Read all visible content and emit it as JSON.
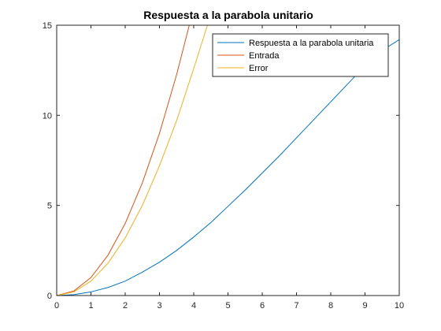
{
  "chart_data": {
    "type": "line",
    "title": "Respuesta a la parabola unitario",
    "xlabel": "",
    "ylabel": "",
    "xlim": [
      0,
      10
    ],
    "ylim": [
      0,
      15
    ],
    "xticks": [
      "0",
      "1",
      "2",
      "3",
      "4",
      "5",
      "6",
      "7",
      "8",
      "9",
      "10"
    ],
    "yticks": [
      "0",
      "5",
      "10",
      "15"
    ],
    "grid": false,
    "legend_position": "top-right",
    "series": [
      {
        "name": "Respuesta a la parabola unitaria",
        "color": "#0072BD",
        "x": [
          0,
          0.5,
          1,
          1.5,
          2,
          2.5,
          3,
          3.5,
          4,
          4.5,
          5,
          5.5,
          6,
          6.5,
          7,
          7.5,
          8,
          8.5,
          9,
          9.5,
          10
        ],
        "y": [
          0,
          0.05,
          0.2,
          0.45,
          0.8,
          1.3,
          1.85,
          2.5,
          3.25,
          4.05,
          4.95,
          5.85,
          6.8,
          7.75,
          8.75,
          9.75,
          10.75,
          11.75,
          12.75,
          13.6,
          14.2
        ]
      },
      {
        "name": "Entrada",
        "color": "#D95319",
        "x": [
          0,
          0.5,
          1,
          1.5,
          2,
          2.5,
          3,
          3.5,
          3.87
        ],
        "y": [
          0,
          0.25,
          1.0,
          2.25,
          4.0,
          6.25,
          9.0,
          12.25,
          15.0
        ]
      },
      {
        "name": "Error",
        "color": "#EDB120",
        "x": [
          0,
          0.5,
          1,
          1.5,
          2,
          2.5,
          3,
          3.5,
          4,
          4.4
        ],
        "y": [
          0,
          0.2,
          0.8,
          1.8,
          3.2,
          5.0,
          7.2,
          9.7,
          12.6,
          15.0
        ]
      }
    ]
  }
}
